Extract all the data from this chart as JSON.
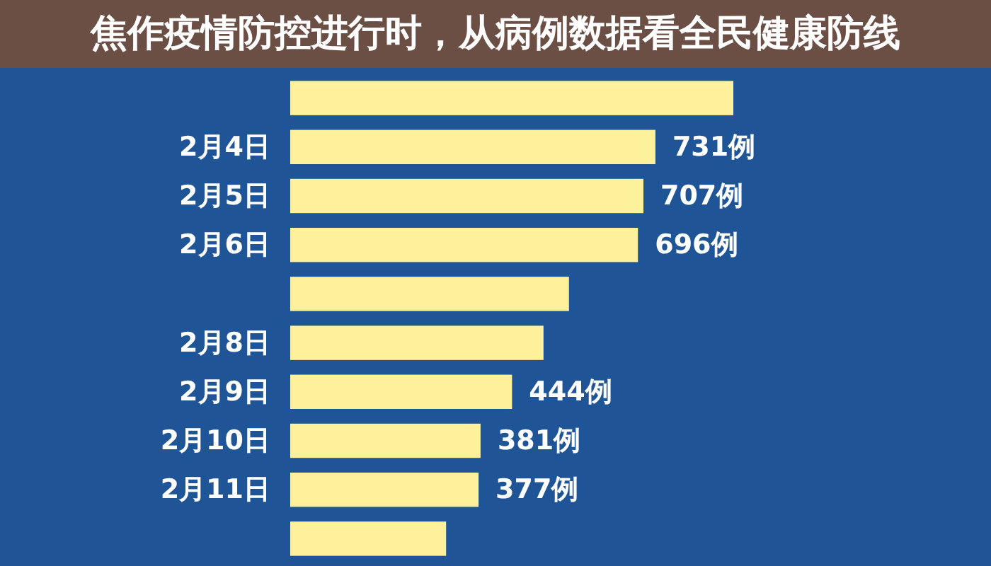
{
  "chart_data": {
    "type": "bar",
    "orientation": "horizontal",
    "title": "焦作疫情防控进行时，从病例数据看全民健康防线",
    "categories": [
      null,
      "2月4日",
      "2月5日",
      "2月6日",
      null,
      "2月8日",
      "2月9日",
      "2月10日",
      "2月11日",
      null
    ],
    "values": [
      887,
      731,
      707,
      696,
      558,
      507,
      444,
      381,
      377,
      312
    ],
    "value_labels": [
      null,
      "731例",
      "707例",
      "696例",
      null,
      null,
      "444例",
      "381例",
      "377例",
      null
    ],
    "color": "#fdf19c"
  }
}
